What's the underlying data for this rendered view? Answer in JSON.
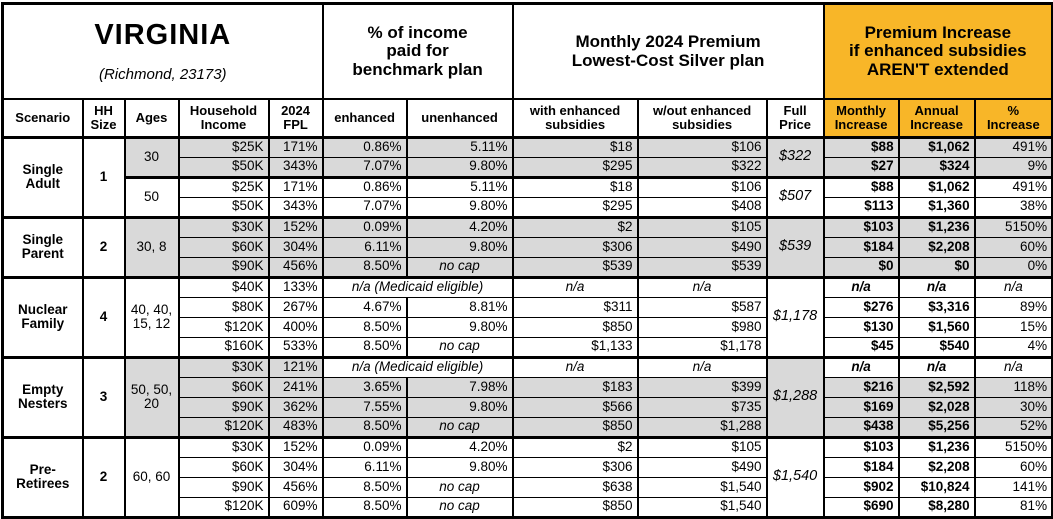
{
  "title": {
    "state": "VIRGINIA",
    "location": "(Richmond, 23173)"
  },
  "header_groups": {
    "income_pct": "% of income\npaid for\nbenchmark plan",
    "premium": "Monthly 2024 Premium\nLowest-Cost Silver plan",
    "increase": "Premium Increase\nif enhanced subsidies\nAREN'T extended"
  },
  "columns": {
    "scenario": "Scenario",
    "hh_size": "HH\nSize",
    "ages": "Ages",
    "income": "Household\nIncome",
    "fpl": "2024\nFPL",
    "enhanced": "enhanced",
    "unenhanced": "unenhanced",
    "with_subsidies": "with enhanced\nsubsidies",
    "without_subsidies": "w/out enhanced\nsubsidies",
    "full_price": "Full\nPrice",
    "monthly": "Monthly\nIncrease",
    "annual": "Annual\nIncrease",
    "pct": "%\nIncrease"
  },
  "colors": {
    "accent_orange": "#F8B628",
    "row_shade_gray": "#D9D9D9",
    "border_black": "#000000"
  },
  "scenarios": [
    {
      "name": "Single\nAdult",
      "hh_size": "1",
      "subgroups": [
        {
          "ages": "30",
          "full_price": "$322",
          "shaded": true,
          "rows": [
            {
              "income": "$25K",
              "fpl": "171%",
              "enhanced": "0.86%",
              "unenhanced": "5.11%",
              "with_subsidies": "$18",
              "without_subsidies": "$106",
              "monthly": "$88",
              "annual": "$1,062",
              "pct": "491%"
            },
            {
              "income": "$50K",
              "fpl": "343%",
              "enhanced": "7.07%",
              "unenhanced": "9.80%",
              "with_subsidies": "$295",
              "without_subsidies": "$322",
              "monthly": "$27",
              "annual": "$324",
              "pct": "9%"
            }
          ]
        },
        {
          "ages": "50",
          "full_price": "$507",
          "shaded": false,
          "rows": [
            {
              "income": "$25K",
              "fpl": "171%",
              "enhanced": "0.86%",
              "unenhanced": "5.11%",
              "with_subsidies": "$18",
              "without_subsidies": "$106",
              "monthly": "$88",
              "annual": "$1,062",
              "pct": "491%"
            },
            {
              "income": "$50K",
              "fpl": "343%",
              "enhanced": "7.07%",
              "unenhanced": "9.80%",
              "with_subsidies": "$295",
              "without_subsidies": "$408",
              "monthly": "$113",
              "annual": "$1,360",
              "pct": "38%"
            }
          ]
        }
      ]
    },
    {
      "name": "Single\nParent",
      "hh_size": "2",
      "subgroups": [
        {
          "ages": "30, 8",
          "full_price": "$539",
          "shaded": true,
          "rows": [
            {
              "income": "$30K",
              "fpl": "152%",
              "enhanced": "0.09%",
              "unenhanced": "4.20%",
              "with_subsidies": "$2",
              "without_subsidies": "$105",
              "monthly": "$103",
              "annual": "$1,236",
              "pct": "5150%"
            },
            {
              "income": "$60K",
              "fpl": "304%",
              "enhanced": "6.11%",
              "unenhanced": "9.80%",
              "with_subsidies": "$306",
              "without_subsidies": "$490",
              "monthly": "$184",
              "annual": "$2,208",
              "pct": "60%"
            },
            {
              "income": "$90K",
              "fpl": "456%",
              "enhanced": "8.50%",
              "unenhanced": "no cap",
              "with_subsidies": "$539",
              "without_subsidies": "$539",
              "monthly": "$0",
              "annual": "$0",
              "pct": "0%"
            }
          ]
        }
      ]
    },
    {
      "name": "Nuclear\nFamily",
      "hh_size": "4",
      "subgroups": [
        {
          "ages": "40, 40,\n15, 12",
          "full_price": "$1,178",
          "shaded": false,
          "rows": [
            {
              "income": "$40K",
              "fpl": "133%",
              "note": "n/a (Medicaid eligible)",
              "with_subsidies": "n/a",
              "without_subsidies": "n/a",
              "monthly": "n/a",
              "annual": "n/a",
              "pct": "n/a"
            },
            {
              "income": "$80K",
              "fpl": "267%",
              "enhanced": "4.67%",
              "unenhanced": "8.81%",
              "with_subsidies": "$311",
              "without_subsidies": "$587",
              "monthly": "$276",
              "annual": "$3,316",
              "pct": "89%"
            },
            {
              "income": "$120K",
              "fpl": "400%",
              "enhanced": "8.50%",
              "unenhanced": "9.80%",
              "with_subsidies": "$850",
              "without_subsidies": "$980",
              "monthly": "$130",
              "annual": "$1,560",
              "pct": "15%"
            },
            {
              "income": "$160K",
              "fpl": "533%",
              "enhanced": "8.50%",
              "unenhanced": "no cap",
              "with_subsidies": "$1,133",
              "without_subsidies": "$1,178",
              "monthly": "$45",
              "annual": "$540",
              "pct": "4%"
            }
          ]
        }
      ]
    },
    {
      "name": "Empty\nNesters",
      "hh_size": "3",
      "subgroups": [
        {
          "ages": "50, 50,\n20",
          "full_price": "$1,288",
          "shaded": true,
          "rows": [
            {
              "income": "$30K",
              "fpl": "121%",
              "note": "n/a (Medicaid eligible)",
              "with_subsidies": "n/a",
              "without_subsidies": "n/a",
              "monthly": "n/a",
              "annual": "n/a",
              "pct": "n/a"
            },
            {
              "income": "$60K",
              "fpl": "241%",
              "enhanced": "3.65%",
              "unenhanced": "7.98%",
              "with_subsidies": "$183",
              "without_subsidies": "$399",
              "monthly": "$216",
              "annual": "$2,592",
              "pct": "118%"
            },
            {
              "income": "$90K",
              "fpl": "362%",
              "enhanced": "7.55%",
              "unenhanced": "9.80%",
              "with_subsidies": "$566",
              "without_subsidies": "$735",
              "monthly": "$169",
              "annual": "$2,028",
              "pct": "30%"
            },
            {
              "income": "$120K",
              "fpl": "483%",
              "enhanced": "8.50%",
              "unenhanced": "no cap",
              "with_subsidies": "$850",
              "without_subsidies": "$1,288",
              "monthly": "$438",
              "annual": "$5,256",
              "pct": "52%"
            }
          ]
        }
      ]
    },
    {
      "name": "Pre-\nRetirees",
      "hh_size": "2",
      "subgroups": [
        {
          "ages": "60, 60",
          "full_price": "$1,540",
          "shaded": false,
          "rows": [
            {
              "income": "$30K",
              "fpl": "152%",
              "enhanced": "0.09%",
              "unenhanced": "4.20%",
              "with_subsidies": "$2",
              "without_subsidies": "$105",
              "monthly": "$103",
              "annual": "$1,236",
              "pct": "5150%"
            },
            {
              "income": "$60K",
              "fpl": "304%",
              "enhanced": "6.11%",
              "unenhanced": "9.80%",
              "with_subsidies": "$306",
              "without_subsidies": "$490",
              "monthly": "$184",
              "annual": "$2,208",
              "pct": "60%"
            },
            {
              "income": "$90K",
              "fpl": "456%",
              "enhanced": "8.50%",
              "unenhanced": "no cap",
              "with_subsidies": "$638",
              "without_subsidies": "$1,540",
              "monthly": "$902",
              "annual": "$10,824",
              "pct": "141%"
            },
            {
              "income": "$120K",
              "fpl": "609%",
              "enhanced": "8.50%",
              "unenhanced": "no cap",
              "with_subsidies": "$850",
              "without_subsidies": "$1,540",
              "monthly": "$690",
              "annual": "$8,280",
              "pct": "81%"
            }
          ]
        }
      ]
    }
  ],
  "chart_data": {
    "type": "table",
    "title": "VIRGINIA (Richmond, 23173)",
    "column_groups": [
      "% of income paid for benchmark plan",
      "Monthly 2024 Premium Lowest-Cost Silver plan",
      "Premium Increase if enhanced subsidies AREN'T extended"
    ],
    "headers": [
      "Scenario",
      "HH Size",
      "Ages",
      "Household Income",
      "2024 FPL",
      "enhanced",
      "unenhanced",
      "with enhanced subsidies",
      "w/out enhanced subsidies",
      "Full Price",
      "Monthly Increase",
      "Annual Increase",
      "% Increase"
    ],
    "rows": [
      [
        "Single Adult",
        "1",
        "30",
        "$25K",
        "171%",
        "0.86%",
        "5.11%",
        "$18",
        "$106",
        "$322",
        "$88",
        "$1,062",
        "491%"
      ],
      [
        "Single Adult",
        "1",
        "30",
        "$50K",
        "343%",
        "7.07%",
        "9.80%",
        "$295",
        "$322",
        "$322",
        "$27",
        "$324",
        "9%"
      ],
      [
        "Single Adult",
        "1",
        "50",
        "$25K",
        "171%",
        "0.86%",
        "5.11%",
        "$18",
        "$106",
        "$507",
        "$88",
        "$1,062",
        "491%"
      ],
      [
        "Single Adult",
        "1",
        "50",
        "$50K",
        "343%",
        "7.07%",
        "9.80%",
        "$295",
        "$408",
        "$507",
        "$113",
        "$1,360",
        "38%"
      ],
      [
        "Single Parent",
        "2",
        "30, 8",
        "$30K",
        "152%",
        "0.09%",
        "4.20%",
        "$2",
        "$105",
        "$539",
        "$103",
        "$1,236",
        "5150%"
      ],
      [
        "Single Parent",
        "2",
        "30, 8",
        "$60K",
        "304%",
        "6.11%",
        "9.80%",
        "$306",
        "$490",
        "$539",
        "$184",
        "$2,208",
        "60%"
      ],
      [
        "Single Parent",
        "2",
        "30, 8",
        "$90K",
        "456%",
        "8.50%",
        "no cap",
        "$539",
        "$539",
        "$539",
        "$0",
        "$0",
        "0%"
      ],
      [
        "Nuclear Family",
        "4",
        "40, 40, 15, 12",
        "$40K",
        "133%",
        "n/a (Medicaid eligible)",
        "n/a (Medicaid eligible)",
        "n/a",
        "n/a",
        "$1,178",
        "n/a",
        "n/a",
        "n/a"
      ],
      [
        "Nuclear Family",
        "4",
        "40, 40, 15, 12",
        "$80K",
        "267%",
        "4.67%",
        "8.81%",
        "$311",
        "$587",
        "$1,178",
        "$276",
        "$3,316",
        "89%"
      ],
      [
        "Nuclear Family",
        "4",
        "40, 40, 15, 12",
        "$120K",
        "400%",
        "8.50%",
        "9.80%",
        "$850",
        "$980",
        "$1,178",
        "$130",
        "$1,560",
        "15%"
      ],
      [
        "Nuclear Family",
        "4",
        "40, 40, 15, 12",
        "$160K",
        "533%",
        "8.50%",
        "no cap",
        "$1,133",
        "$1,178",
        "$1,178",
        "$45",
        "$540",
        "4%"
      ],
      [
        "Empty Nesters",
        "3",
        "50, 50, 20",
        "$30K",
        "121%",
        "n/a (Medicaid eligible)",
        "n/a (Medicaid eligible)",
        "n/a",
        "n/a",
        "$1,288",
        "n/a",
        "n/a",
        "n/a"
      ],
      [
        "Empty Nesters",
        "3",
        "50, 50, 20",
        "$60K",
        "241%",
        "3.65%",
        "7.98%",
        "$183",
        "$399",
        "$1,288",
        "$216",
        "$2,592",
        "118%"
      ],
      [
        "Empty Nesters",
        "3",
        "50, 50, 20",
        "$90K",
        "362%",
        "7.55%",
        "9.80%",
        "$566",
        "$735",
        "$1,288",
        "$169",
        "$2,028",
        "30%"
      ],
      [
        "Empty Nesters",
        "3",
        "50, 50, 20",
        "$120K",
        "483%",
        "8.50%",
        "no cap",
        "$850",
        "$1,288",
        "$1,288",
        "$438",
        "$5,256",
        "52%"
      ],
      [
        "Pre-Retirees",
        "2",
        "60, 60",
        "$30K",
        "152%",
        "0.09%",
        "4.20%",
        "$2",
        "$105",
        "$1,540",
        "$103",
        "$1,236",
        "5150%"
      ],
      [
        "Pre-Retirees",
        "2",
        "60, 60",
        "$60K",
        "304%",
        "6.11%",
        "9.80%",
        "$306",
        "$490",
        "$1,540",
        "$184",
        "$2,208",
        "60%"
      ],
      [
        "Pre-Retirees",
        "2",
        "60, 60",
        "$90K",
        "456%",
        "8.50%",
        "no cap",
        "$638",
        "$1,540",
        "$1,540",
        "$902",
        "$10,824",
        "141%"
      ],
      [
        "Pre-Retirees",
        "2",
        "60, 60",
        "$120K",
        "609%",
        "8.50%",
        "no cap",
        "$850",
        "$1,540",
        "$1,540",
        "$690",
        "$8,280",
        "81%"
      ]
    ]
  }
}
